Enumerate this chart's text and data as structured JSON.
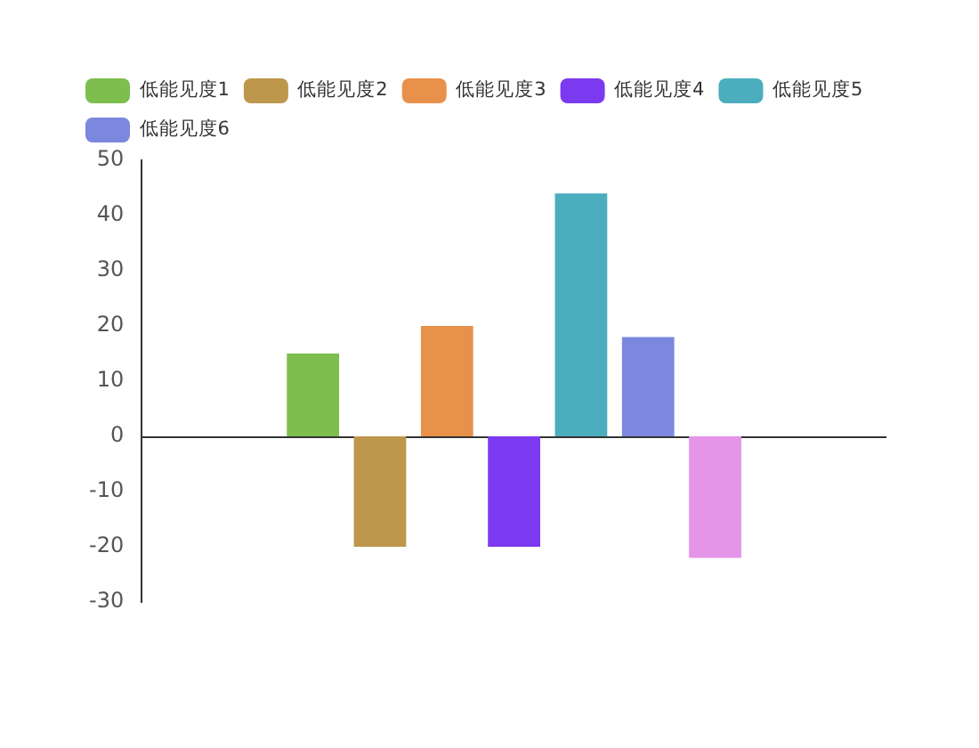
{
  "chart_data": {
    "type": "bar",
    "categories": [
      null
    ],
    "series": [
      {
        "name": "低能见度1",
        "color": "#7dbe4e",
        "values": [
          15
        ]
      },
      {
        "name": "低能见度2",
        "color": "#bd974b",
        "values": [
          -20
        ]
      },
      {
        "name": "低能见度3",
        "color": "#e8914a",
        "values": [
          20
        ]
      },
      {
        "name": "低能见度4",
        "color": "#7b3af0",
        "values": [
          -20
        ]
      },
      {
        "name": "低能见度5",
        "color": "#4badbd",
        "values": [
          44
        ]
      },
      {
        "name": "低能见度6",
        "color": "#7b88de",
        "values": [
          18
        ]
      },
      {
        "color": "#e594e8",
        "values": [
          -22
        ]
      }
    ],
    "ylim": [
      -30,
      50
    ],
    "yticks": [
      -30,
      -20,
      -10,
      0,
      10,
      20,
      30,
      40,
      50
    ],
    "ref_lines": [
      {
        "axis": "y",
        "value": 0,
        "color": "#333333"
      }
    ],
    "grid": false,
    "legend": "top left",
    "tick_labels": "y"
  }
}
